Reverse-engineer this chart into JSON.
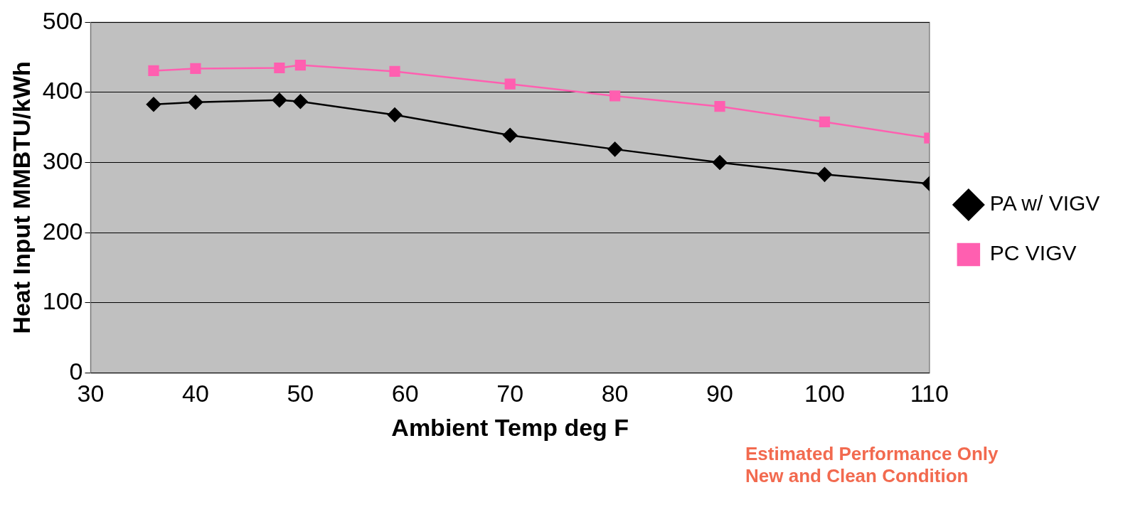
{
  "chart_data": {
    "type": "line",
    "xlabel": "Ambient Temp deg F",
    "ylabel": "Heat Input MMBTU/kWh",
    "xlim": [
      30,
      110
    ],
    "xticks": [
      30,
      40,
      50,
      60,
      70,
      80,
      90,
      100,
      110
    ],
    "ylim": [
      0,
      500
    ],
    "yticks": [
      0,
      100,
      200,
      300,
      400,
      500
    ],
    "grid": "y",
    "legend": "right",
    "line_style": "solid",
    "series": [
      {
        "name": "PA w/ VIGV",
        "color": "#000000",
        "marker": "diamond",
        "x": [
          36,
          40,
          48,
          50,
          59,
          70,
          80,
          90,
          100,
          110
        ],
        "values": [
          383,
          386,
          389,
          387,
          368,
          339,
          319,
          300,
          283,
          270
        ]
      },
      {
        "name": "PC VIGV",
        "color": "#ff5fb0",
        "marker": "square",
        "x": [
          36,
          40,
          48,
          50,
          59,
          70,
          80,
          90,
          100,
          110
        ],
        "values": [
          431,
          434,
          435,
          439,
          430,
          412,
          395,
          380,
          358,
          335
        ]
      }
    ],
    "annotations": [
      "Estimated Performance Only\nNew and Clean Condition"
    ]
  }
}
